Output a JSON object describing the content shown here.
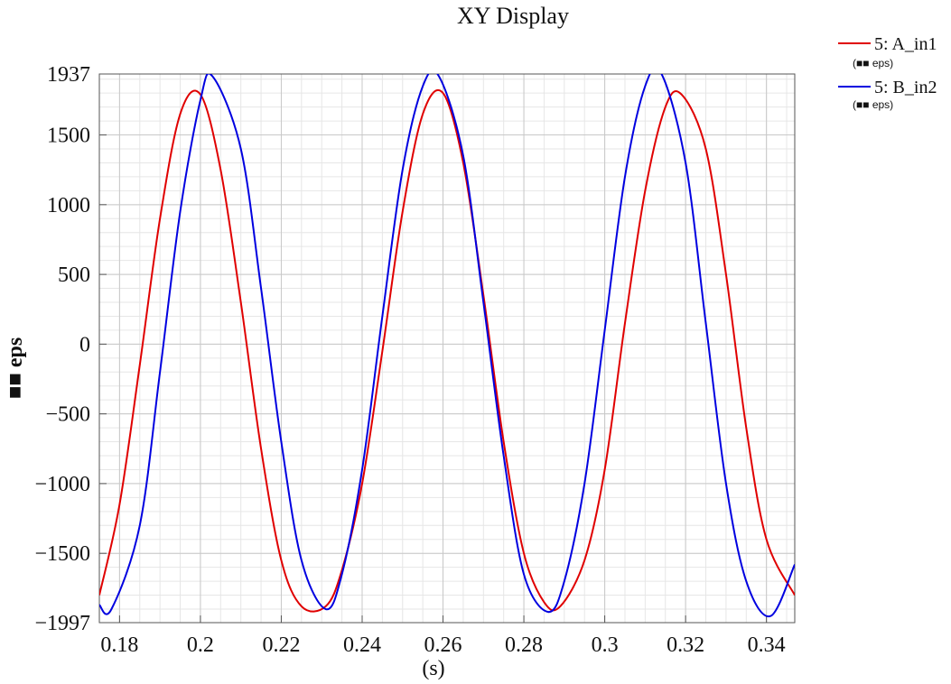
{
  "chart_data": {
    "type": "line",
    "title": "XY Display",
    "xlabel": "(s)",
    "ylabel": "■■ eps",
    "xlim": [
      0.175,
      0.347
    ],
    "ylim": [
      -1997,
      1937
    ],
    "x_ticks": [
      0.18,
      0.2,
      0.22,
      0.24,
      0.26,
      0.28,
      0.3,
      0.32,
      0.34
    ],
    "x_tick_labels": [
      "0.18",
      "0.2",
      "0.22",
      "0.24",
      "0.26",
      "0.28",
      "0.3",
      "0.32",
      "0.34"
    ],
    "y_ticks": [
      1937,
      1500,
      1000,
      500,
      0,
      -500,
      -1000,
      -1500,
      -1997
    ],
    "y_tick_labels": [
      "1937",
      "1500",
      "1000",
      "500",
      "0",
      "−500",
      "−1000",
      "−1500",
      "−1997"
    ],
    "grid": true,
    "legend_position": "top-right, outside",
    "series": [
      {
        "name": "5: A_in1",
        "unit": "(■■ eps)",
        "color": "#e00000",
        "x": [
          0.175,
          0.18,
          0.185,
          0.19,
          0.195,
          0.2,
          0.205,
          0.21,
          0.215,
          0.22,
          0.225,
          0.231,
          0.235,
          0.24,
          0.245,
          0.25,
          0.255,
          0.26,
          0.265,
          0.27,
          0.275,
          0.28,
          0.285,
          0.289,
          0.295,
          0.3,
          0.305,
          0.31,
          0.315,
          0.319,
          0.325,
          0.33,
          0.335,
          0.34,
          0.347
        ],
        "y": [
          -1800,
          -1150,
          -150,
          900,
          1650,
          1790,
          1250,
          300,
          -750,
          -1550,
          -1880,
          -1880,
          -1620,
          -1000,
          -50,
          950,
          1650,
          1800,
          1300,
          350,
          -700,
          -1500,
          -1850,
          -1880,
          -1550,
          -900,
          150,
          1100,
          1700,
          1790,
          1400,
          500,
          -600,
          -1400,
          -1800
        ]
      },
      {
        "name": "5: B_in2",
        "unit": "(■■ eps)",
        "color": "#0000e0",
        "x": [
          0.175,
          0.178,
          0.185,
          0.19,
          0.195,
          0.2,
          0.203,
          0.21,
          0.215,
          0.22,
          0.225,
          0.231,
          0.235,
          0.24,
          0.245,
          0.25,
          0.255,
          0.259,
          0.265,
          0.27,
          0.275,
          0.28,
          0.286,
          0.29,
          0.295,
          0.3,
          0.305,
          0.31,
          0.314,
          0.32,
          0.325,
          0.33,
          0.335,
          0.341,
          0.347
        ],
        "y": [
          -1870,
          -1900,
          -1300,
          -200,
          950,
          1750,
          1920,
          1400,
          400,
          -700,
          -1550,
          -1900,
          -1650,
          -900,
          200,
          1250,
          1850,
          1920,
          1350,
          300,
          -800,
          -1650,
          -1920,
          -1700,
          -1000,
          100,
          1200,
          1850,
          1940,
          1300,
          150,
          -1000,
          -1700,
          -1950,
          -1580
        ]
      }
    ]
  }
}
